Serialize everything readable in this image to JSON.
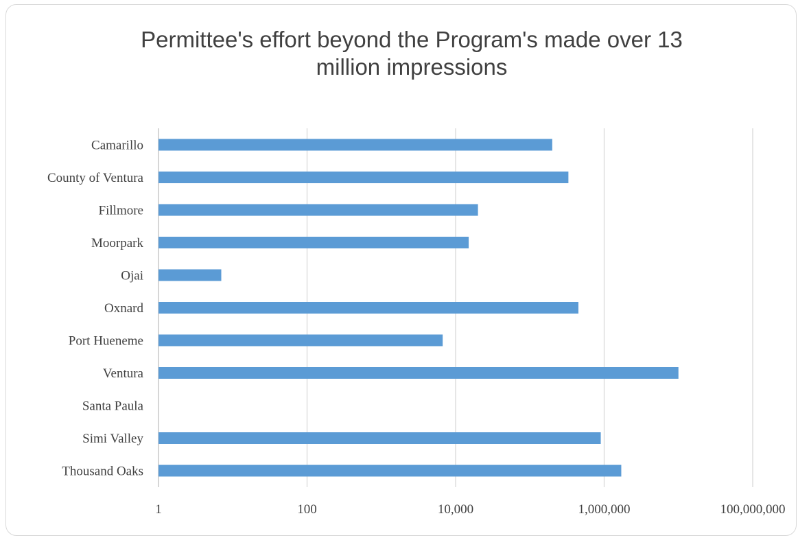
{
  "chart_data": {
    "type": "bar",
    "orientation": "horizontal",
    "title_line1": "Permittee's effort beyond the Program's made over 13",
    "title_line2": "million impressions",
    "xscale": "log",
    "xlim": [
      1,
      100000000
    ],
    "ticks": [
      1,
      100,
      10000,
      1000000,
      100000000
    ],
    "tick_labels": [
      "1",
      "100",
      "10,000",
      "1,000,000",
      "100,000,000"
    ],
    "grid": "vertical",
    "bar_color": "#5b9bd5",
    "categories": [
      "Camarillo",
      "County of Ventura",
      "Fillmore",
      "Moorpark",
      "Ojai",
      "Oxnard",
      "Port Hueneme",
      "Ventura",
      "Santa Paula",
      "Simi Valley",
      "Thousand Oaks"
    ],
    "values": [
      200000,
      330000,
      20000,
      15000,
      7,
      450000,
      6700,
      10000000,
      null,
      900000,
      1700000
    ]
  }
}
